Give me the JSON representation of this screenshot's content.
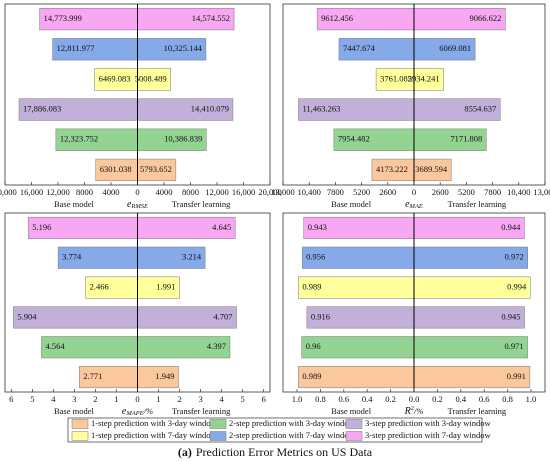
{
  "rows": [
    {
      "name": "3-step prediction with 7-day window",
      "color": "#f8a8f2"
    },
    {
      "name": "2-step prediction with 7-day window",
      "color": "#86a9ea"
    },
    {
      "name": "1-step prediction with 7-day window",
      "color": "#ffff9c"
    },
    {
      "name": "3-step prediction with 3-day window",
      "color": "#c3b0da"
    },
    {
      "name": "2-step prediction with 3-day window",
      "color": "#93d493"
    },
    {
      "name": "1-step prediction with 3-day window",
      "color": "#fbc89e"
    }
  ],
  "caption_label": "(a)",
  "caption": "Prediction Error Metrics on US Data",
  "chart_data": [
    {
      "type": "butterfly",
      "xlabel": "e",
      "xlabel_sub": "RMSE",
      "xlim": [
        0,
        20000
      ],
      "xticks": [
        0,
        4000,
        8000,
        {
          "value": 12000,
          "label": "12,000"
        },
        {
          "value": 16000,
          "label": "16,000"
        },
        {
          "value": 20000,
          "label": "20,000"
        }
      ],
      "series": [
        {
          "name": "Base model",
          "values": [
            14773.999,
            12811.977,
            6469.083,
            17886.083,
            12323.752,
            6301.038
          ],
          "value_labels": [
            "14,773.999",
            "12,811.977",
            "6469.083",
            "17,886.083",
            "12,323.752",
            "6301.038"
          ]
        },
        {
          "name": "Transfer learning",
          "values": [
            14574.552,
            10325.144,
            5008.489,
            14410.079,
            10386.839,
            5793.652
          ],
          "value_labels": [
            "14,574.552",
            "10,325.144",
            "5008.489",
            "14,410.079",
            "10,386.839",
            "5793.652"
          ]
        }
      ]
    },
    {
      "type": "butterfly",
      "xlabel": "e",
      "xlabel_sub": "MAE",
      "xlim": [
        0,
        13000
      ],
      "xticks": [
        0,
        2600,
        5200,
        7800,
        {
          "value": 10400,
          "label": "10,400"
        },
        {
          "value": 13000,
          "label": "13,000"
        }
      ],
      "series": [
        {
          "name": "Base model",
          "values": [
            9612.456,
            7447.674,
            3761.085,
            11463.263,
            7954.482,
            4173.222
          ],
          "value_labels": [
            "9612.456",
            "7447.674",
            "3761.085",
            "11,463.263",
            "7954.482",
            "4173.222"
          ]
        },
        {
          "name": "Transfer learning",
          "values": [
            9066.622,
            6069.081,
            2934.241,
            8554.637,
            7171.808,
            3689.594
          ]
        }
      ]
    },
    {
      "type": "butterfly",
      "xlabel": "e",
      "xlabel_sub": "MAPE",
      "xlabel_suffix": "/%",
      "xlim": [
        0,
        6.3
      ],
      "xticks": [
        0,
        1,
        2,
        3,
        4,
        5,
        6
      ],
      "series": [
        {
          "name": "Base model",
          "values": [
            5.196,
            3.774,
            2.466,
            5.904,
            4.564,
            2.771
          ]
        },
        {
          "name": "Transfer learning",
          "values": [
            4.645,
            3.214,
            1.991,
            4.707,
            4.397,
            1.949
          ]
        }
      ]
    },
    {
      "type": "butterfly",
      "xlabel": "R",
      "xlabel_sup": "2",
      "xlabel_suffix": "/%",
      "xlim": [
        0,
        1.12
      ],
      "xticks": [
        {
          "value": 0,
          "label": "0.0"
        },
        0.2,
        0.4,
        0.6,
        0.8,
        {
          "value": 1,
          "label": "1.0"
        }
      ],
      "series": [
        {
          "name": "Base model",
          "values": [
            0.943,
            0.956,
            0.989,
            0.916,
            0.96,
            0.989
          ]
        },
        {
          "name": "Transfer learning",
          "values": [
            0.944,
            0.972,
            0.994,
            0.945,
            0.971,
            0.991
          ]
        }
      ]
    }
  ]
}
